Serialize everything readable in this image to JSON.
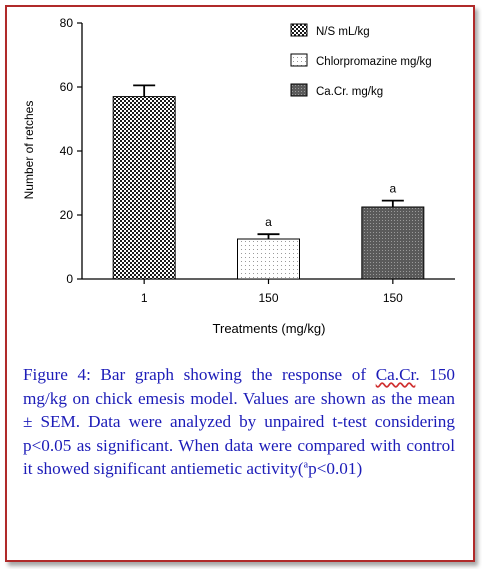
{
  "chart_data": {
    "type": "bar",
    "categories": [
      "1",
      "150",
      "150"
    ],
    "series": [
      {
        "name": "N/S mL/kg",
        "value": 57,
        "sem": 3.5,
        "pattern": "checker",
        "annotation": ""
      },
      {
        "name": "Chlorpromazine mg/kg",
        "value": 12.5,
        "sem": 1.5,
        "pattern": "dots",
        "annotation": "a"
      },
      {
        "name": "Ca.Cr. mg/kg",
        "value": 22.5,
        "sem": 2.0,
        "pattern": "dark-dots",
        "annotation": "a"
      }
    ],
    "values": [
      57,
      12.5,
      22.5
    ],
    "errors": [
      3.5,
      1.5,
      2.0
    ],
    "ylim": [
      0,
      80
    ],
    "yticks": [
      "0",
      "20",
      "40",
      "60",
      "80"
    ],
    "ylabel": "Number of retches",
    "xlabel": "Treatments (mg/kg)",
    "legend_position": "top-right",
    "grid": false,
    "colors": {
      "axis": "#000000",
      "frame": "#b02a2a",
      "caption_text": "#1c1cb8"
    }
  },
  "caption": {
    "prefix": "Figure 4: Bar graph showing the response of ",
    "underlined": "Ca.Cr",
    "middle": ". 150 mg/kg on chick emesis model. Values are shown as the mean ± SEM. Data were analyzed by unpaired t-test considering p<0.05 as significant. When data were compared with control it showed significant antiemetic activity(",
    "sup": "a",
    "suffix": "p<0.01)"
  }
}
